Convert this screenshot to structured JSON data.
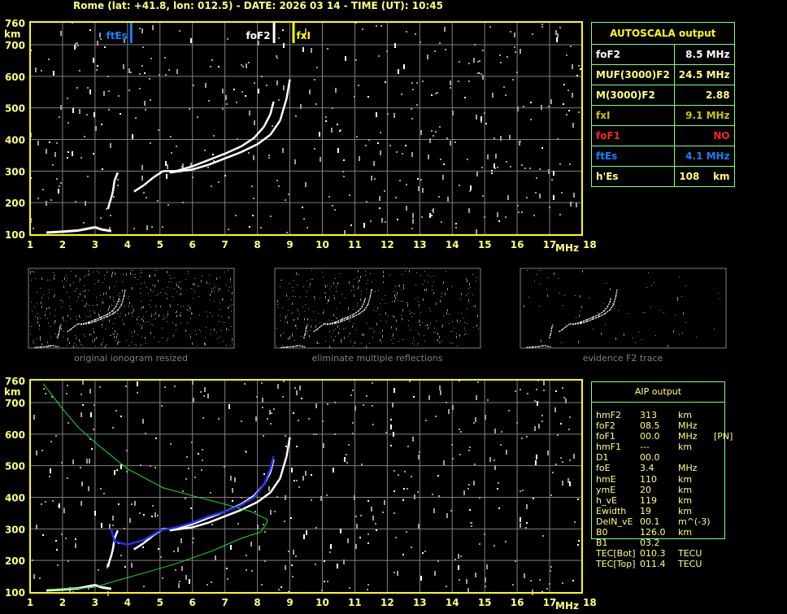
{
  "header": {
    "title": "Rome (lat: +41.8, lon: 012.5) - DATE: 2026 03 14 - TIME (UT): 10:45"
  },
  "autoscala": {
    "title": "AUTOSCALA output",
    "rows": [
      {
        "label": "foF2",
        "value": "8.5 MHz",
        "color": "#ffffff"
      },
      {
        "label": "MUF(3000)F2",
        "value": "24.5 MHz",
        "color": "#ffff80"
      },
      {
        "label": "M(3000)F2",
        "value": "2.88",
        "color": "#ffff80"
      },
      {
        "label": "fxI",
        "value": "9.1 MHz",
        "color": "#c8c800"
      },
      {
        "label": "foF1",
        "value": "NO",
        "color": "#ff2020"
      },
      {
        "label": "ftEs",
        "value": "4.1 MHz",
        "color": "#1880ff"
      },
      {
        "label": "h'Es",
        "value": "108    km",
        "color": "#ffff80"
      }
    ]
  },
  "aip": {
    "title": "AIP output",
    "rows": [
      [
        "hmF2",
        "313",
        "km",
        ""
      ],
      [
        "foF2",
        "08.5",
        "MHz",
        ""
      ],
      [
        "foF1",
        "00.0",
        "MHz",
        "[PN]"
      ],
      [
        "hmF1",
        "---",
        "km",
        ""
      ],
      [
        "D1",
        "00.0",
        "",
        ""
      ],
      [
        "foE",
        "3.4",
        "MHz",
        ""
      ],
      [
        "hmE",
        "110",
        "km",
        ""
      ],
      [
        "ymE",
        "20",
        "km",
        ""
      ],
      [
        "h_vE",
        "119",
        "km",
        ""
      ],
      [
        "Ewidth",
        "19",
        "km",
        ""
      ],
      [
        "DelN_vE",
        "00.1",
        "m^(-3)",
        ""
      ],
      [
        "B0",
        "126.0",
        "km",
        ""
      ],
      [
        "B1",
        "03.2",
        "",
        ""
      ],
      [
        "TEC[Bot]",
        "010.3",
        "TECU",
        ""
      ],
      [
        "TEC[Top]",
        "011.4",
        "TECU",
        ""
      ]
    ]
  },
  "thumbnails": {
    "captions": [
      "original ionogram resized",
      "eliminate multiple reflections",
      "evidence F2 trace"
    ]
  },
  "chart_data": [
    {
      "type": "scatter",
      "title": "",
      "xlabel": "MHz",
      "ylabel": "km",
      "xlim": [
        1,
        18
      ],
      "ylim": [
        100,
        760
      ],
      "xticks": [
        "1",
        "2",
        "3",
        "4",
        "5",
        "6",
        "7",
        "8",
        "9",
        "10",
        "11",
        "12",
        "13",
        "14",
        "15",
        "16",
        "17",
        "18"
      ],
      "yticks": [
        "100",
        "200",
        "300",
        "400",
        "500",
        "600",
        "700",
        "760"
      ],
      "grid": true,
      "markers": [
        {
          "label": "ftEs",
          "freq": 4.1,
          "color": "#1880ff"
        },
        {
          "label": "foF2",
          "freq": 8.5,
          "color": "#ffffff"
        },
        {
          "label": "fxI",
          "freq": 9.1,
          "color": "#ffff00"
        }
      ],
      "traces": {
        "E": [
          [
            1.5,
            105
          ],
          [
            2,
            108
          ],
          [
            2.5,
            112
          ],
          [
            2.8,
            118
          ],
          [
            3,
            122
          ],
          [
            3.2,
            115
          ],
          [
            3.5,
            110
          ]
        ],
        "Es": [
          [
            3.4,
            180
          ],
          [
            3.45,
            200
          ],
          [
            3.5,
            215
          ],
          [
            3.55,
            235
          ],
          [
            3.6,
            270
          ],
          [
            3.7,
            295
          ]
        ],
        "O": [
          [
            4.2,
            235
          ],
          [
            4.5,
            255
          ],
          [
            4.8,
            280
          ],
          [
            5.1,
            300
          ],
          [
            5.5,
            300
          ],
          [
            6,
            315
          ],
          [
            6.5,
            335
          ],
          [
            7,
            355
          ],
          [
            7.5,
            378
          ],
          [
            7.9,
            405
          ],
          [
            8.2,
            440
          ],
          [
            8.4,
            480
          ],
          [
            8.5,
            520
          ]
        ],
        "X": [
          [
            5.3,
            295
          ],
          [
            6,
            305
          ],
          [
            6.5,
            320
          ],
          [
            7,
            340
          ],
          [
            7.5,
            360
          ],
          [
            8,
            385
          ],
          [
            8.4,
            415
          ],
          [
            8.7,
            460
          ],
          [
            8.9,
            530
          ],
          [
            9,
            590
          ]
        ]
      }
    },
    {
      "type": "line",
      "title": "",
      "xlabel": "MHz",
      "ylabel": "km",
      "xlim": [
        1,
        18
      ],
      "ylim": [
        100,
        760
      ],
      "grid": true,
      "profile": [
        [
          1.4,
          760
        ],
        [
          2,
          680
        ],
        [
          2.5,
          620
        ],
        [
          3.1,
          565
        ],
        [
          4,
          490
        ],
        [
          5.1,
          430
        ],
        [
          6,
          405
        ],
        [
          7,
          378
        ],
        [
          7.8,
          355
        ],
        [
          8.3,
          330
        ],
        [
          8.3,
          320
        ],
        [
          8.1,
          290
        ],
        [
          7.5,
          270
        ],
        [
          6.6,
          230
        ],
        [
          5.5,
          190
        ],
        [
          4.5,
          160
        ],
        [
          3.8,
          140
        ],
        [
          3.3,
          125
        ],
        [
          3,
          115
        ],
        [
          2.5,
          112
        ],
        [
          2,
          110
        ],
        [
          1.5,
          108
        ]
      ],
      "blue_trace": [
        [
          3.5,
          300
        ],
        [
          3.6,
          260
        ],
        [
          4,
          250
        ],
        [
          4.5,
          265
        ],
        [
          5,
          295
        ],
        [
          5.5,
          305
        ],
        [
          6,
          320
        ],
        [
          6.5,
          340
        ],
        [
          7,
          355
        ],
        [
          7.5,
          375
        ],
        [
          7.9,
          400
        ],
        [
          8.2,
          440
        ],
        [
          8.4,
          490
        ],
        [
          8.5,
          530
        ]
      ]
    }
  ]
}
